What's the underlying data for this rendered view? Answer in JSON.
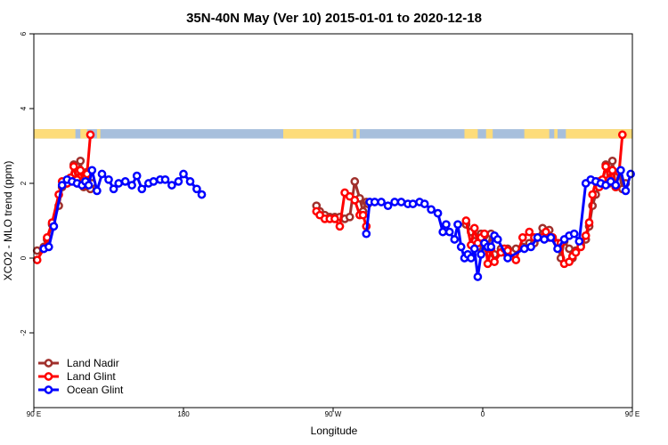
{
  "chart_data": {
    "type": "line",
    "title": "35N-40N May (Ver 10)   2015-01-01 to 2020-12-18",
    "xlabel": "Longitude",
    "ylabel": "XCO2 - MLO trend (ppm)",
    "xlim": [
      90,
      450
    ],
    "ylim": [
      -4,
      6
    ],
    "x_ticks": [
      {
        "value": 90,
        "label": "90 E"
      },
      {
        "value": 180,
        "label": "180"
      },
      {
        "value": 270,
        "label": "90 W"
      },
      {
        "value": 360,
        "label": "0"
      },
      {
        "value": 450,
        "label": "90 E"
      },
      {
        "value": 540,
        "label": "180"
      }
    ],
    "y_ticks": [
      {
        "value": -2,
        "label": "-2"
      },
      {
        "value": 0,
        "label": "0"
      },
      {
        "value": 2,
        "label": "2"
      },
      {
        "value": 4,
        "label": "4"
      },
      {
        "value": 6,
        "label": "6"
      }
    ],
    "legend_position": "bottom-left",
    "land_ocean_band": {
      "y_range": [
        3.2,
        3.45
      ],
      "ocean_color": "#a7bfdc",
      "land_color": "#fddc7a",
      "land_segments": [
        [
          90,
          115
        ],
        [
          118,
          122
        ],
        [
          128,
          130
        ],
        [
          240,
          282
        ],
        [
          284,
          286
        ],
        [
          349,
          357
        ],
        [
          362,
          366
        ],
        [
          385,
          400
        ],
        [
          403,
          405
        ],
        [
          410,
          450
        ],
        [
          451,
          463
        ]
      ]
    },
    "series": [
      {
        "name": "Land Nadir",
        "color": "#a0302c",
        "points": [
          [
            92,
            0.2
          ],
          [
            96,
            0.3
          ],
          [
            98,
            0.5
          ],
          [
            101,
            0.9
          ],
          [
            105,
            1.4
          ],
          [
            107,
            1.9
          ],
          [
            110,
            2.0
          ],
          [
            112,
            2.1
          ],
          [
            114,
            2.5
          ],
          [
            116,
            2.0
          ],
          [
            118,
            2.6
          ],
          [
            120,
            1.9
          ],
          [
            122,
            2.3
          ],
          [
            124,
            1.85
          ],
          [
            125,
            2.0
          ],
          [
            260,
            1.4
          ],
          [
            262,
            1.25
          ],
          [
            265,
            1.15
          ],
          [
            268,
            1.1
          ],
          [
            271,
            1.1
          ],
          [
            274,
            1.1
          ],
          [
            277,
            1.05
          ],
          [
            280,
            1.1
          ],
          [
            283,
            2.05
          ],
          [
            286,
            1.6
          ],
          [
            288,
            1.25
          ],
          [
            290,
            1.5
          ],
          [
            291,
            1.45
          ],
          [
            350,
            0.9
          ],
          [
            353,
            0.7
          ],
          [
            355,
            0.45
          ],
          [
            357,
            0.3
          ],
          [
            359,
            0.65
          ],
          [
            361,
            0.6
          ],
          [
            363,
            0.25
          ],
          [
            365,
            0.65
          ],
          [
            367,
            0.1
          ],
          [
            371,
            0.25
          ],
          [
            373,
            0.15
          ],
          [
            375,
            0.25
          ],
          [
            380,
            0.25
          ],
          [
            384,
            0.3
          ],
          [
            388,
            0.4
          ],
          [
            391,
            0.4
          ],
          [
            393,
            0.55
          ],
          [
            396,
            0.8
          ],
          [
            398,
            0.6
          ],
          [
            400,
            0.75
          ],
          [
            402,
            0.55
          ],
          [
            405,
            0.4
          ],
          [
            407,
            0.0
          ],
          [
            409,
            0.45
          ],
          [
            412,
            0.25
          ],
          [
            414,
            0.0
          ],
          [
            416,
            0.2
          ],
          [
            419,
            0.35
          ],
          [
            422,
            0.5
          ],
          [
            424,
            0.85
          ],
          [
            426,
            1.4
          ],
          [
            428,
            1.7
          ],
          [
            430,
            2.05
          ],
          [
            432,
            2.0
          ],
          [
            434,
            2.5
          ],
          [
            436,
            2.0
          ],
          [
            438,
            2.6
          ],
          [
            440,
            1.9
          ],
          [
            442,
            2.3
          ],
          [
            444,
            1.85
          ],
          [
            446,
            2.0
          ]
        ]
      },
      {
        "name": "Land Glint",
        "color": "#ff0000",
        "points": [
          [
            92,
            -0.05
          ],
          [
            96,
            0.25
          ],
          [
            98,
            0.55
          ],
          [
            101,
            0.95
          ],
          [
            105,
            1.7
          ],
          [
            107,
            2.05
          ],
          [
            110,
            2.0
          ],
          [
            112,
            2.15
          ],
          [
            114,
            2.45
          ],
          [
            116,
            2.1
          ],
          [
            118,
            2.35
          ],
          [
            120,
            1.95
          ],
          [
            122,
            2.25
          ],
          [
            124,
            3.3
          ],
          [
            260,
            1.25
          ],
          [
            262,
            1.15
          ],
          [
            265,
            1.05
          ],
          [
            268,
            1.05
          ],
          [
            271,
            1.05
          ],
          [
            274,
            0.85
          ],
          [
            277,
            1.75
          ],
          [
            280,
            1.65
          ],
          [
            283,
            1.55
          ],
          [
            286,
            1.15
          ],
          [
            288,
            1.15
          ],
          [
            290,
            0.85
          ],
          [
            350,
            1.0
          ],
          [
            353,
            0.35
          ],
          [
            355,
            0.8
          ],
          [
            357,
            0.4
          ],
          [
            359,
            0.55
          ],
          [
            361,
            0.65
          ],
          [
            363,
            -0.15
          ],
          [
            365,
            0.25
          ],
          [
            367,
            -0.1
          ],
          [
            371,
            0.15
          ],
          [
            373,
            0.25
          ],
          [
            375,
            0.2
          ],
          [
            380,
            -0.05
          ],
          [
            384,
            0.55
          ],
          [
            388,
            0.7
          ],
          [
            391,
            0.55
          ],
          [
            393,
            0.55
          ],
          [
            396,
            0.55
          ],
          [
            398,
            0.7
          ],
          [
            400,
            0.55
          ],
          [
            402,
            0.55
          ],
          [
            405,
            0.4
          ],
          [
            407,
            0.4
          ],
          [
            409,
            -0.15
          ],
          [
            412,
            -0.1
          ],
          [
            414,
            0.05
          ],
          [
            416,
            0.15
          ],
          [
            419,
            0.3
          ],
          [
            422,
            0.6
          ],
          [
            424,
            0.95
          ],
          [
            426,
            1.7
          ],
          [
            428,
            2.05
          ],
          [
            430,
            1.9
          ],
          [
            432,
            2.1
          ],
          [
            434,
            2.45
          ],
          [
            436,
            2.1
          ],
          [
            438,
            2.35
          ],
          [
            440,
            1.9
          ],
          [
            442,
            2.3
          ],
          [
            444,
            3.3
          ]
        ]
      },
      {
        "name": "Ocean Glint",
        "color": "#0000ff",
        "points": [
          [
            96,
            0.25
          ],
          [
            99,
            0.3
          ],
          [
            102,
            0.85
          ],
          [
            107,
            1.95
          ],
          [
            110,
            2.1
          ],
          [
            113,
            2.05
          ],
          [
            116,
            2.0
          ],
          [
            119,
            1.95
          ],
          [
            121,
            2.05
          ],
          [
            123,
            1.95
          ],
          [
            125,
            2.35
          ],
          [
            128,
            1.8
          ],
          [
            131,
            2.25
          ],
          [
            135,
            2.1
          ],
          [
            138,
            1.85
          ],
          [
            141,
            2.0
          ],
          [
            145,
            2.05
          ],
          [
            149,
            1.95
          ],
          [
            152,
            2.2
          ],
          [
            155,
            1.85
          ],
          [
            159,
            2.0
          ],
          [
            162,
            2.05
          ],
          [
            166,
            2.1
          ],
          [
            169,
            2.1
          ],
          [
            173,
            1.95
          ],
          [
            177,
            2.05
          ],
          [
            180,
            2.25
          ],
          [
            184,
            2.05
          ],
          [
            188,
            1.85
          ],
          [
            191,
            1.7
          ],
          [
            290,
            0.65
          ],
          [
            292,
            1.5
          ],
          [
            295,
            1.5
          ],
          [
            299,
            1.5
          ],
          [
            303,
            1.4
          ],
          [
            307,
            1.5
          ],
          [
            311,
            1.5
          ],
          [
            315,
            1.45
          ],
          [
            318,
            1.45
          ],
          [
            322,
            1.5
          ],
          [
            325,
            1.45
          ],
          [
            329,
            1.3
          ],
          [
            333,
            1.2
          ],
          [
            336,
            0.7
          ],
          [
            338,
            0.9
          ],
          [
            340,
            0.7
          ],
          [
            343,
            0.5
          ],
          [
            345,
            0.9
          ],
          [
            347,
            0.3
          ],
          [
            349,
            0.0
          ],
          [
            351,
            0.1
          ],
          [
            353,
            0.0
          ],
          [
            355,
            0.25
          ],
          [
            357,
            -0.5
          ],
          [
            359,
            0.1
          ],
          [
            361,
            0.4
          ],
          [
            363,
            0.3
          ],
          [
            365,
            0.3
          ],
          [
            367,
            0.6
          ],
          [
            369,
            0.5
          ],
          [
            375,
            0.0
          ],
          [
            385,
            0.25
          ],
          [
            389,
            0.3
          ],
          [
            393,
            0.55
          ],
          [
            397,
            0.5
          ],
          [
            401,
            0.55
          ],
          [
            405,
            0.25
          ],
          [
            409,
            0.5
          ],
          [
            412,
            0.6
          ],
          [
            415,
            0.65
          ],
          [
            418,
            0.45
          ],
          [
            422,
            2.0
          ],
          [
            425,
            2.1
          ],
          [
            428,
            2.05
          ],
          [
            431,
            2.0
          ],
          [
            434,
            1.95
          ],
          [
            437,
            2.05
          ],
          [
            440,
            1.95
          ],
          [
            443,
            2.35
          ],
          [
            446,
            1.8
          ],
          [
            449,
            2.25
          ],
          [
            453,
            2.1
          ],
          [
            457,
            1.85
          ],
          [
            461,
            2.05
          ]
        ]
      }
    ]
  }
}
